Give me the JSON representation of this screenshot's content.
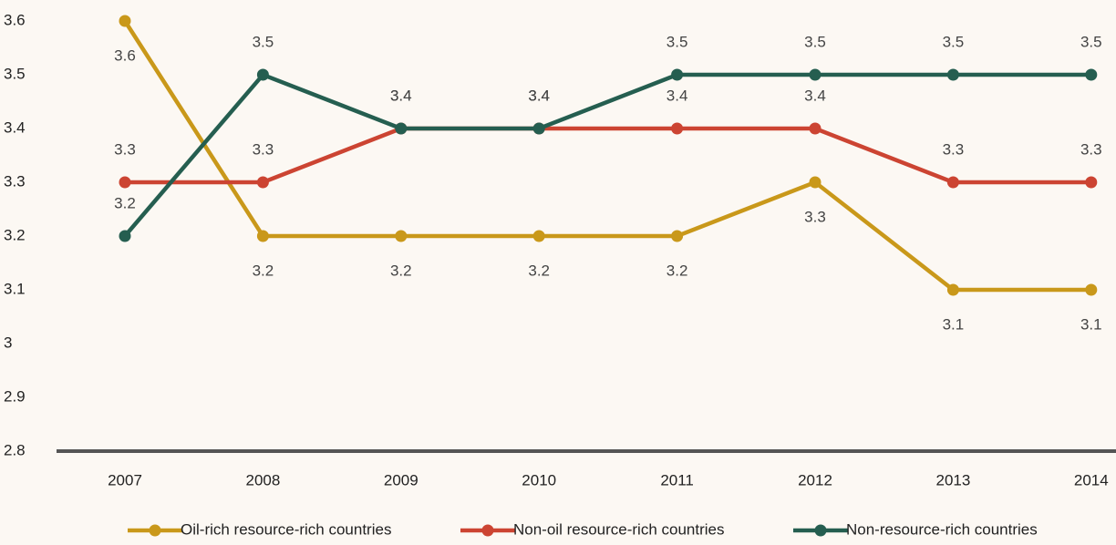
{
  "chart_data": {
    "type": "line",
    "categories": [
      "2007",
      "2008",
      "2009",
      "2010",
      "2011",
      "2012",
      "2013",
      "2014"
    ],
    "series": [
      {
        "name": "Oil-rich resource-rich countries",
        "color": "#c9981a",
        "values": [
          3.6,
          3.2,
          3.2,
          3.2,
          3.2,
          3.3,
          3.1,
          3.1
        ]
      },
      {
        "name": "Non-oil resource-rich countries",
        "color": "#cc4432",
        "values": [
          3.3,
          3.3,
          3.4,
          3.4,
          3.4,
          3.4,
          3.3,
          3.3
        ]
      },
      {
        "name": "Non-resource-rich countries",
        "color": "#255e50",
        "values": [
          3.2,
          3.5,
          3.4,
          3.4,
          3.5,
          3.5,
          3.5,
          3.5
        ]
      }
    ],
    "ylim": [
      2.8,
      3.6
    ],
    "yticks": [
      2.8,
      2.9,
      3,
      3.1,
      3.2,
      3.3,
      3.4,
      3.5,
      3.6
    ],
    "grid": false,
    "legend": "bottom"
  }
}
